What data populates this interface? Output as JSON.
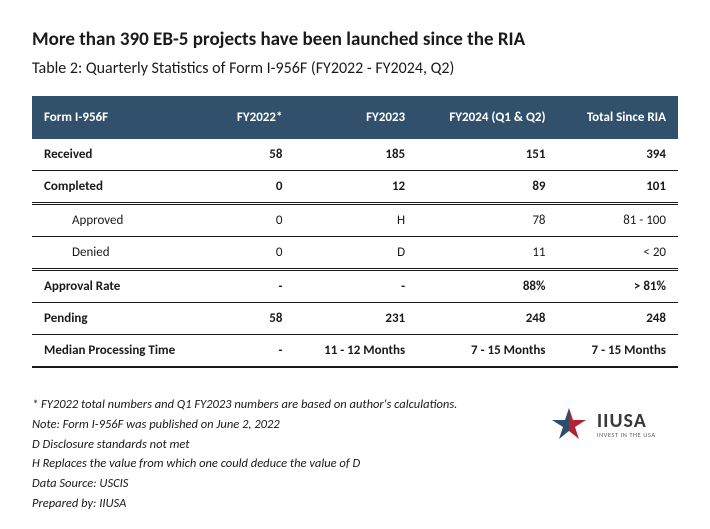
{
  "title": "More than 390 EB-5 projects have been launched since the RIA",
  "subtitle": "Table 2: Quarterly Statistics of Form I-956F (FY2022 - FY2024, Q2)",
  "table": {
    "header_bg": "#31506b",
    "header_color": "#ffffff",
    "columns": [
      "Form I-956F",
      "FY2022*",
      "FY2023",
      "FY2024 (Q1 & Q2)",
      "Total Since RIA"
    ],
    "rows": [
      {
        "cells": [
          "Received",
          "58",
          "185",
          "151",
          "394"
        ],
        "bold": true
      },
      {
        "cells": [
          "Completed",
          "0",
          "12",
          "89",
          "101"
        ],
        "bold": true
      },
      {
        "cells": [
          "Approved",
          "0",
          "H",
          "78",
          "81 - 100"
        ],
        "indent": true,
        "dbl_top": true
      },
      {
        "cells": [
          "Denied",
          "0",
          "D",
          "11",
          "< 20"
        ],
        "indent": true
      },
      {
        "cells": [
          "Approval Rate",
          "-",
          "-",
          "88%",
          "> 81%"
        ],
        "bold": true,
        "dbl_top": true
      },
      {
        "cells": [
          "Pending",
          "58",
          "231",
          "248",
          "248"
        ],
        "bold": true
      },
      {
        "cells": [
          "Median Processing Time",
          "-",
          "11 - 12 Months",
          "7 - 15 Months",
          "7 - 15 Months"
        ],
        "bold": true,
        "heavy_bottom": true
      }
    ]
  },
  "footnotes": [
    "* FY2022 total numbers and Q1 FY2023 numbers are based on author's calculations.",
    "Note: Form I-956F was published on June 2, 2022",
    "D  Disclosure standards not met",
    "H Replaces the value from which one could deduce the value of D",
    "Data Source: USCIS",
    "Prepared by: IIUSA"
  ],
  "logo": {
    "main": "IIUSA",
    "sub": "INVEST IN THE USA",
    "star_red": "#b22234",
    "star_blue": "#2f4d6a"
  }
}
